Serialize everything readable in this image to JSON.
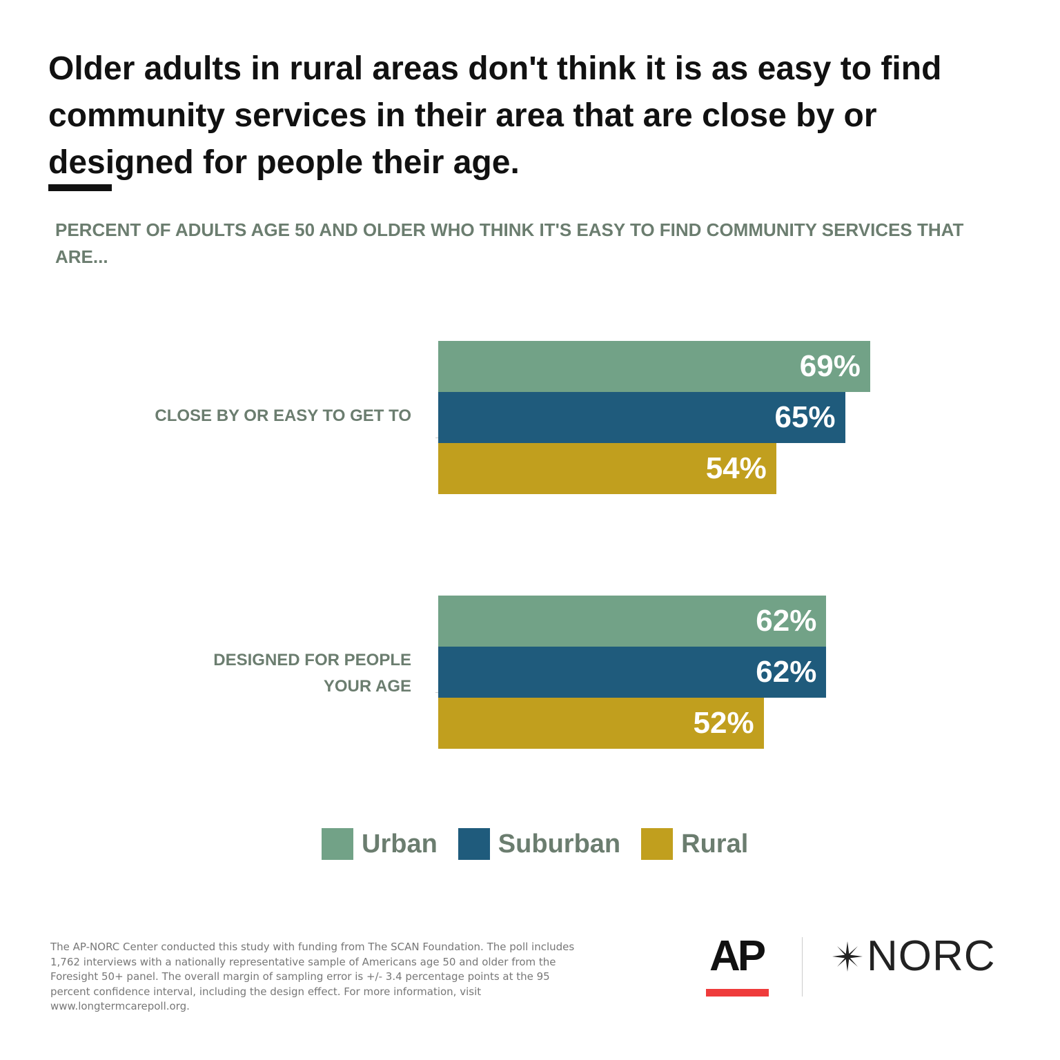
{
  "title": {
    "line1": "Older adults in rural areas don't think it is as easy to find",
    "line2": "community services in their area that are close by or",
    "line3": "designed for people their age."
  },
  "subtitle": "PERCENT OF ADULTS AGE 50 AND OLDER WHO THINK IT'S EASY TO FIND COMMUNITY SERVICES THAT ARE...",
  "chart_data": {
    "type": "bar",
    "orientation": "horizontal",
    "categories": [
      "CLOSE BY OR EASY TO GET TO",
      "DESIGNED FOR PEOPLE YOUR AGE"
    ],
    "series": [
      {
        "name": "Urban",
        "values": [
          69,
          62
        ],
        "labels": [
          "69%",
          "62%"
        ],
        "color": "#72a287"
      },
      {
        "name": "Suburban",
        "values": [
          65,
          62
        ],
        "labels": [
          "65%",
          "62%"
        ],
        "color": "#1f5b7c"
      },
      {
        "name": "Rural",
        "values": [
          54,
          52
        ],
        "labels": [
          "54%",
          "52%"
        ],
        "color": "#c19f1e"
      }
    ],
    "xlim": [
      0,
      100
    ],
    "grid": false,
    "legend": "bottom-center"
  },
  "legend": {
    "urban": "Urban",
    "suburban": "Suburban",
    "rural": "Rural"
  },
  "footnote": "The AP-NORC Center conducted this study with funding from The SCAN Foundation. The poll includes 1,762 interviews with a nationally representative sample of Americans age 50 and older from the Foresight 50+ panel. The overall margin of sampling error is +/- 3.4 percentage points at the 95 percent confidence interval, including the design effect. For more information, visit www.longtermcarepoll.org.",
  "logos": {
    "ap": "AP",
    "norc": "NORC"
  },
  "colors": {
    "accent_red": "#ef3b3b",
    "label_gray": "#6b7d6f"
  }
}
